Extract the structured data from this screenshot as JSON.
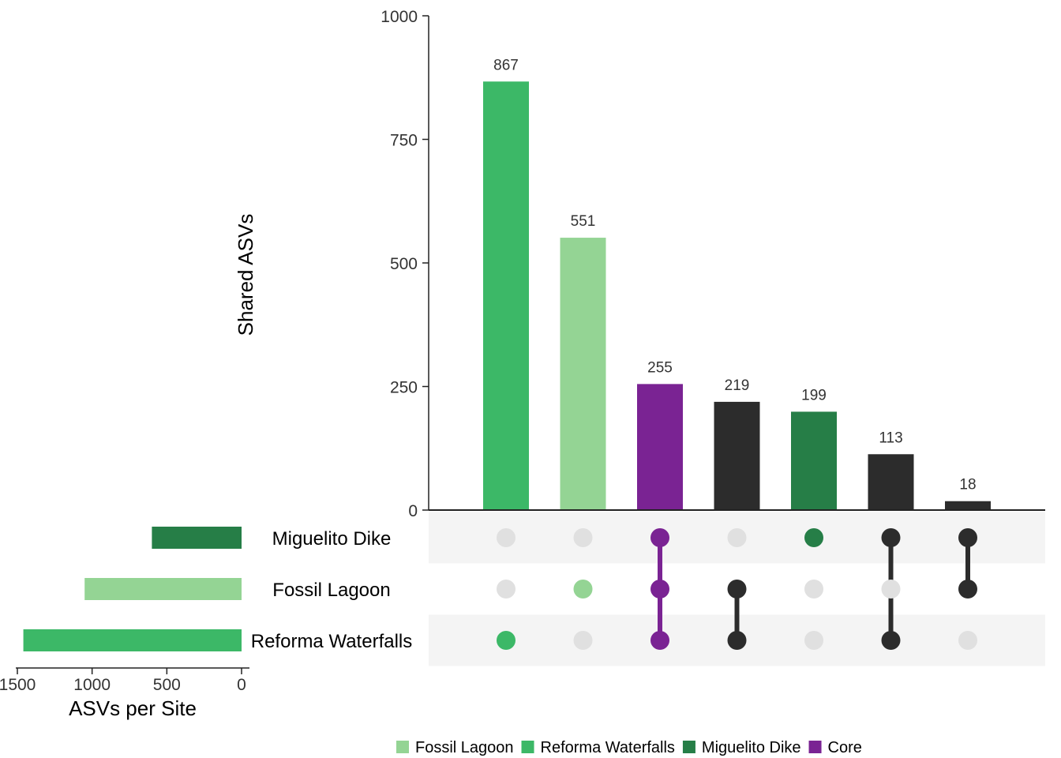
{
  "chart_data": {
    "type": "upset",
    "intersections": {
      "ylabel": "Shared ASVs",
      "ylim": [
        0,
        1000
      ],
      "yticks": [
        "0",
        "250",
        "500",
        "750",
        "1000"
      ],
      "bars": [
        {
          "value": 867,
          "label": "867",
          "members": [
            false,
            false,
            true
          ],
          "color": "#3cb867"
        },
        {
          "value": 551,
          "label": "551",
          "members": [
            false,
            true,
            false
          ],
          "color": "#94d494"
        },
        {
          "value": 255,
          "label": "255",
          "members": [
            true,
            true,
            true
          ],
          "color": "#7a2393"
        },
        {
          "value": 219,
          "label": "219",
          "members": [
            false,
            true,
            true
          ],
          "color": "#2c2c2c"
        },
        {
          "value": 199,
          "label": "199",
          "members": [
            true,
            false,
            false
          ],
          "color": "#267e47"
        },
        {
          "value": 113,
          "label": "113",
          "members": [
            true,
            false,
            true
          ],
          "color": "#2c2c2c"
        },
        {
          "value": 18,
          "label": "18",
          "members": [
            true,
            true,
            false
          ],
          "color": "#2c2c2c"
        }
      ]
    },
    "sets": {
      "xlabel": "ASVs per Site",
      "xlim": [
        1500,
        0
      ],
      "xticks": [
        "1500",
        "1000",
        "500",
        "0"
      ],
      "items": [
        {
          "name": "Miguelito Dike",
          "value": 600,
          "color": "#267e47"
        },
        {
          "name": "Fossil Lagoon",
          "value": 1050,
          "color": "#94d494"
        },
        {
          "name": "Reforma Waterfalls",
          "value": 1460,
          "color": "#3cb867"
        }
      ]
    },
    "legend": {
      "position": "bottom",
      "items": [
        {
          "label": "Fossil Lagoon",
          "color": "#94d494"
        },
        {
          "label": "Reforma Waterfalls",
          "color": "#3cb867"
        },
        {
          "label": "Miguelito Dike",
          "color": "#267e47"
        },
        {
          "label": "Core",
          "color": "#7a2393"
        }
      ]
    },
    "colors": {
      "inactive_dot": "#e0e0e0",
      "stripe": "#f4f4f4",
      "axis": "#222222"
    }
  }
}
